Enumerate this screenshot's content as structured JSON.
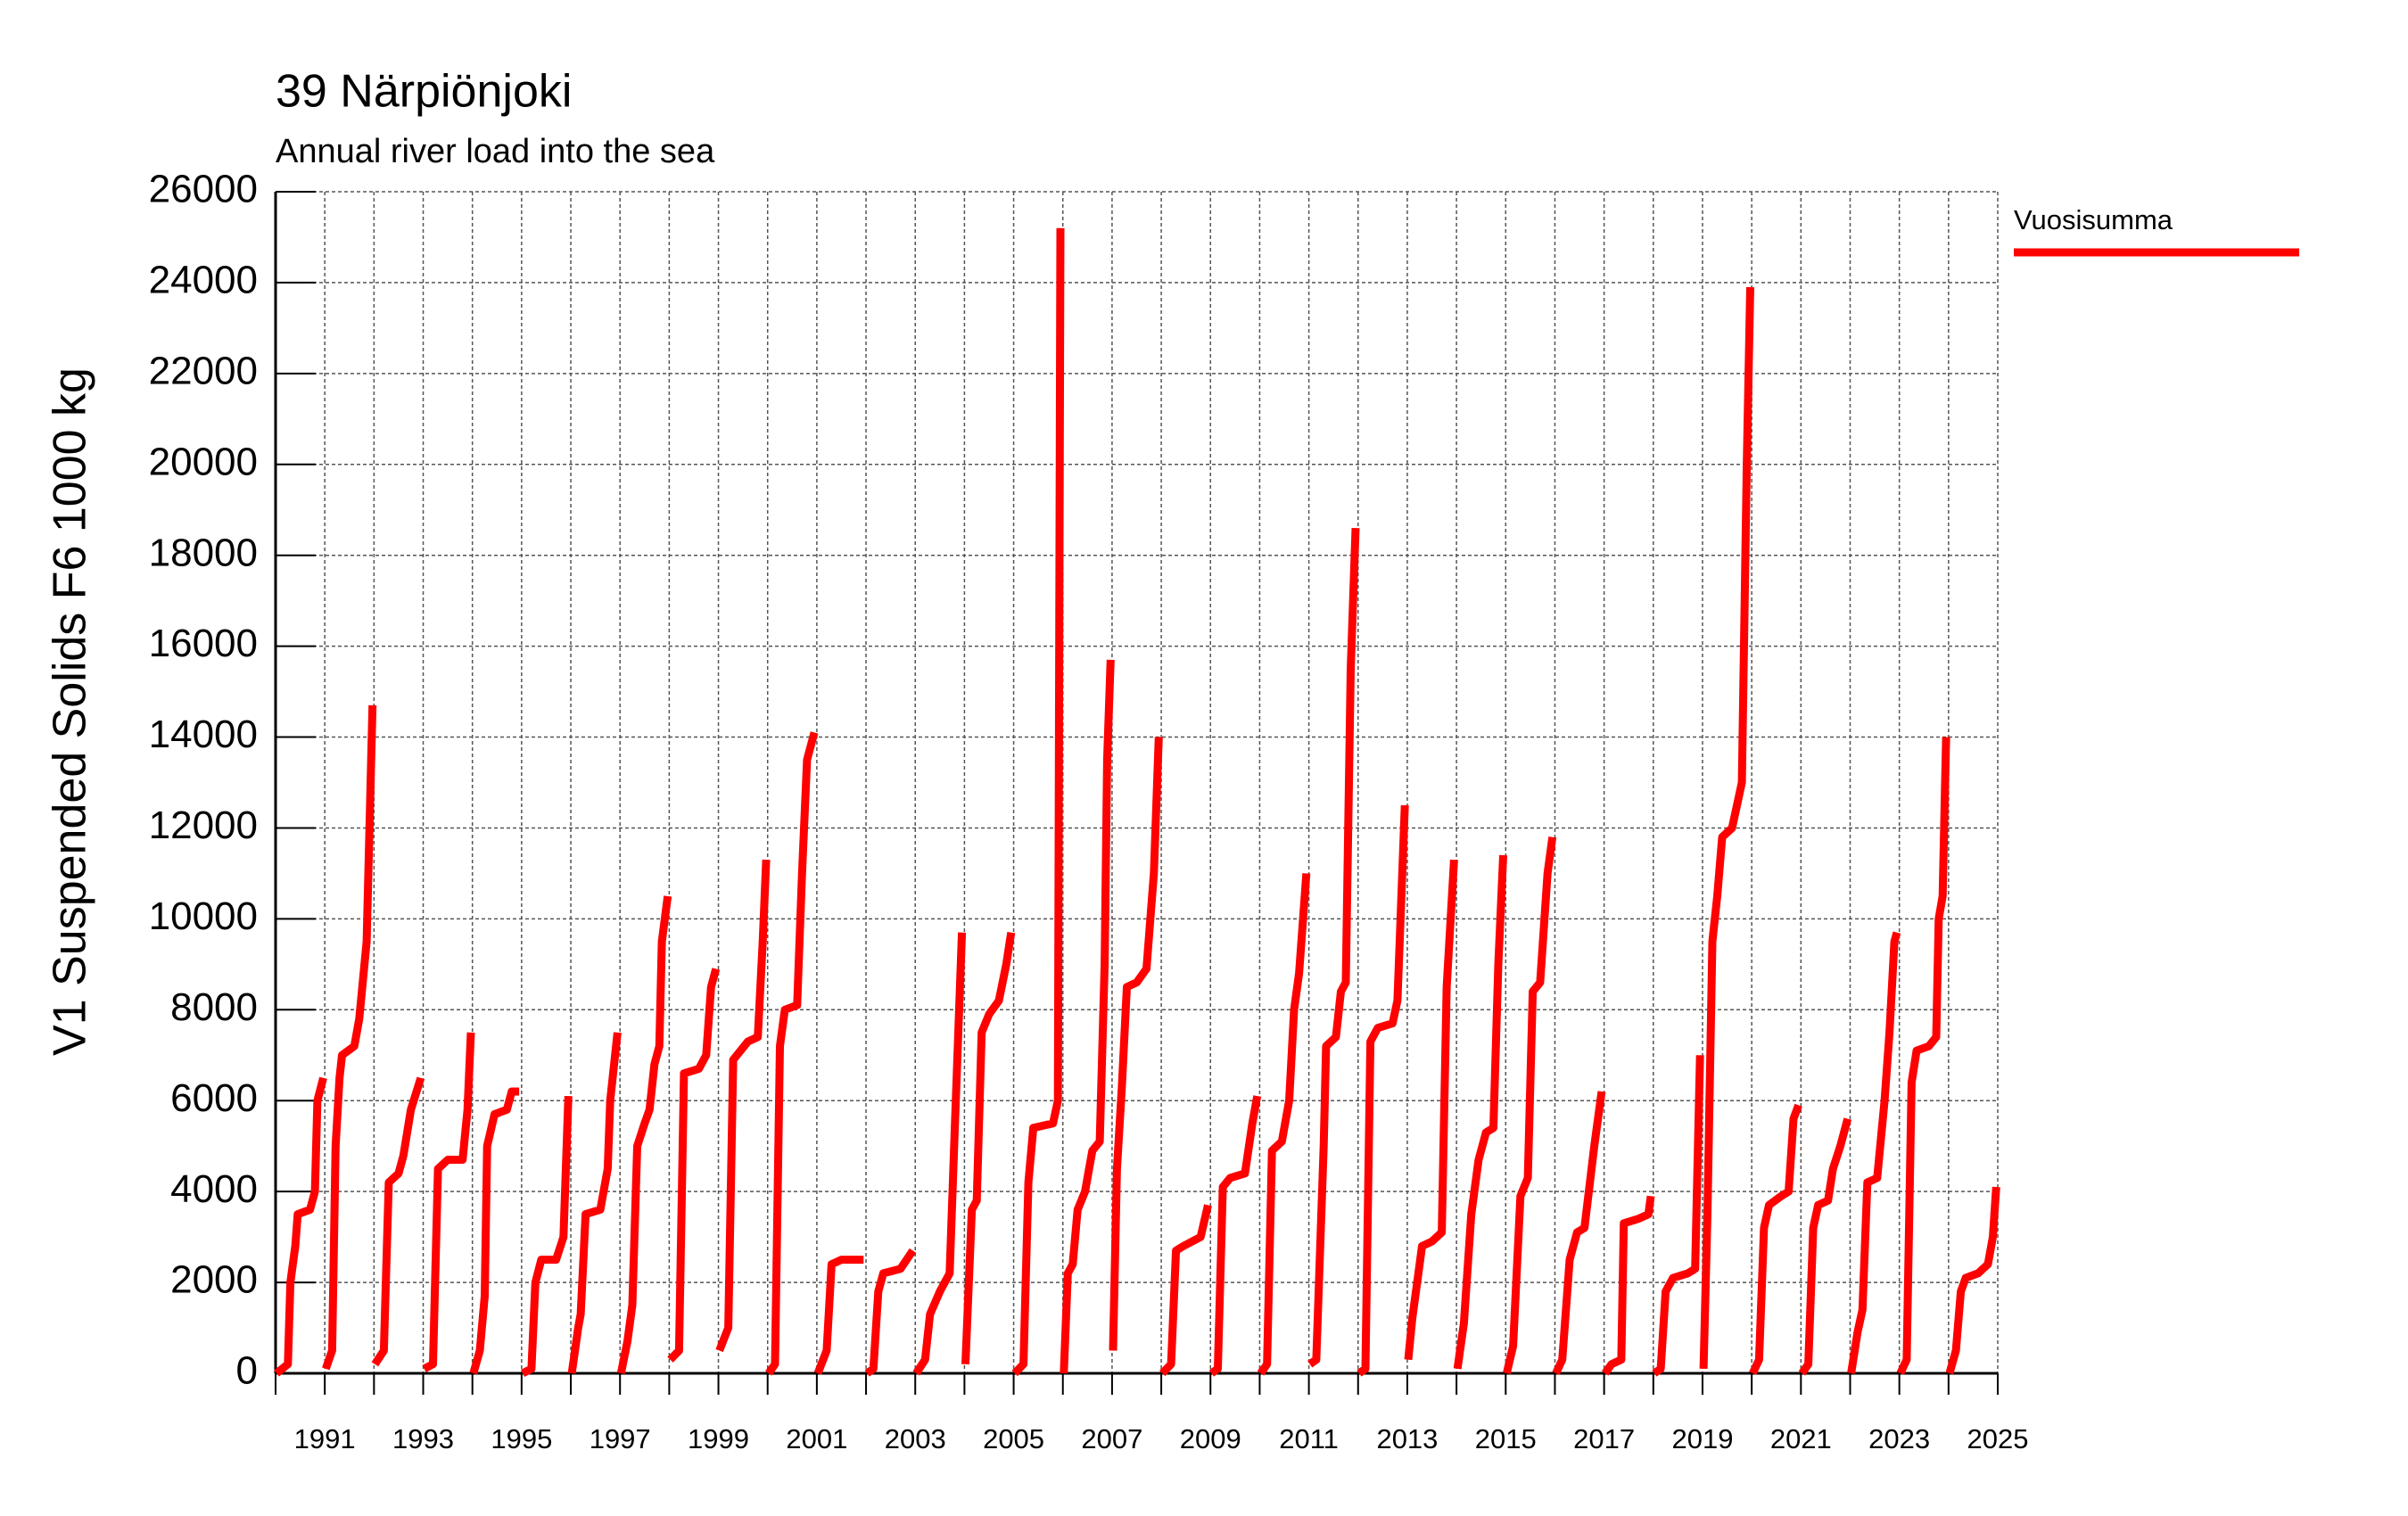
{
  "chart_data": {
    "type": "line",
    "title": "39 Närpiönjoki",
    "subtitle": "Annual river load into the sea",
    "y_label": "V1 Suspended Solids F6 1000 kg",
    "xlim": [
      1990,
      2025
    ],
    "xticks": [
      1991,
      1993,
      1995,
      1997,
      1999,
      2001,
      2003,
      2005,
      2007,
      2009,
      2011,
      2013,
      2015,
      2017,
      2019,
      2021,
      2023,
      2025
    ],
    "xminor_ticks": [
      1990,
      1992,
      1994,
      1996,
      1998,
      2000,
      2002,
      2004,
      2006,
      2008,
      2010,
      2012,
      2014,
      2016,
      2018,
      2020,
      2022,
      2024
    ],
    "ylim": [
      0,
      26000
    ],
    "yticks": [
      0,
      2000,
      4000,
      6000,
      8000,
      10000,
      12000,
      14000,
      16000,
      18000,
      20000,
      22000,
      24000,
      26000
    ],
    "grid": true,
    "legend": "right",
    "x": [
      1990.02,
      1990.25,
      1990.3,
      1990.4,
      1990.45,
      1990.7,
      1990.8,
      1990.85,
      1990.97,
      null,
      1991.02,
      1991.15,
      1991.22,
      1991.3,
      1991.35,
      1991.6,
      1991.7,
      1991.85,
      1991.97,
      null,
      1992.02,
      1992.2,
      1992.3,
      1992.5,
      1992.6,
      1992.75,
      1992.95,
      null,
      1993.02,
      1993.2,
      1993.3,
      1993.5,
      1993.8,
      1993.9,
      1993.97,
      null,
      1994.02,
      1994.15,
      1994.25,
      1994.3,
      1994.45,
      1994.7,
      1994.8,
      1994.95,
      null,
      1995.02,
      1995.2,
      1995.28,
      1995.4,
      1995.7,
      1995.85,
      1995.95,
      null,
      1996.02,
      1996.15,
      1996.2,
      1996.3,
      1996.6,
      1996.75,
      1996.8,
      1996.95,
      null,
      1997.02,
      1997.15,
      1997.25,
      1997.35,
      1997.5,
      1997.6,
      1997.7,
      1997.8,
      1997.85,
      1997.97,
      null,
      1998.02,
      1998.2,
      1998.3,
      1998.6,
      1998.75,
      1998.85,
      1998.95,
      null,
      1999.02,
      1999.2,
      1999.3,
      1999.6,
      1999.8,
      1999.9,
      1999.97,
      null,
      2000.02,
      2000.15,
      2000.25,
      2000.35,
      2000.6,
      2000.7,
      2000.8,
      2000.95,
      null,
      2001.02,
      2001.2,
      2001.3,
      2001.5,
      2001.95,
      null,
      2002.02,
      2002.15,
      2002.25,
      2002.35,
      2002.7,
      2002.95,
      null,
      2003.02,
      2003.2,
      2003.3,
      2003.5,
      2003.7,
      2003.8,
      2003.95,
      null,
      2004.02,
      2004.15,
      2004.25,
      2004.35,
      2004.5,
      2004.7,
      2004.85,
      2004.95,
      null,
      2005.02,
      2005.2,
      2005.3,
      2005.4,
      2005.8,
      2005.9,
      2005.95,
      null,
      2006.02,
      2006.1,
      2006.2,
      2006.3,
      2006.45,
      2006.6,
      2006.75,
      2006.85,
      2006.9,
      2006.97,
      null,
      2007.02,
      2007.1,
      2007.2,
      2007.3,
      2007.5,
      2007.7,
      2007.85,
      2007.95,
      null,
      2008.02,
      2008.2,
      2008.3,
      2008.45,
      2008.8,
      2008.95,
      null,
      2009.02,
      2009.15,
      2009.25,
      2009.4,
      2009.7,
      2009.85,
      2009.95,
      null,
      2010.02,
      2010.15,
      2010.25,
      2010.45,
      2010.6,
      2010.7,
      2010.8,
      2010.95,
      null,
      2011.02,
      2011.15,
      2011.3,
      2011.35,
      2011.55,
      2011.65,
      2011.75,
      2011.85,
      2011.95,
      null,
      2012.02,
      2012.15,
      2012.25,
      2012.4,
      2012.7,
      2012.8,
      2012.95,
      null,
      2013.02,
      2013.1,
      2013.2,
      2013.3,
      2013.5,
      2013.7,
      2013.8,
      2013.95,
      null,
      2014.02,
      2014.15,
      2014.3,
      2014.45,
      2014.6,
      2014.75,
      2014.85,
      2014.95,
      null,
      2015.02,
      2015.15,
      2015.3,
      2015.45,
      2015.55,
      2015.7,
      2015.85,
      2015.95,
      null,
      2016.02,
      2016.15,
      2016.3,
      2016.45,
      2016.6,
      2016.8,
      2016.95,
      null,
      2017.02,
      2017.15,
      2017.35,
      2017.4,
      2017.7,
      2017.9,
      2017.95,
      null,
      2018.02,
      2018.15,
      2018.25,
      2018.4,
      2018.7,
      2018.85,
      2018.95,
      null,
      2019.02,
      2019.1,
      2019.2,
      2019.3,
      2019.4,
      2019.6,
      2019.8,
      2019.9,
      2019.97,
      null,
      2020.02,
      2020.15,
      2020.25,
      2020.35,
      2020.6,
      2020.75,
      2020.85,
      2020.95,
      null,
      2021.02,
      2021.15,
      2021.25,
      2021.35,
      2021.55,
      2021.65,
      2021.8,
      2021.95,
      null,
      2022.02,
      2022.15,
      2022.25,
      2022.35,
      2022.55,
      2022.7,
      2022.8,
      2022.9,
      2022.95,
      null,
      2023.02,
      2023.15,
      2023.25,
      2023.35,
      2023.6,
      2023.75,
      2023.8,
      2023.88,
      2023.95,
      null,
      2024.02,
      2024.15,
      2024.25,
      2024.35,
      2024.6,
      2024.8,
      2024.9,
      2024.97
    ],
    "series": [
      {
        "name": "Vuosisumma",
        "color": "#ff0000",
        "values": [
          0,
          200,
          2000,
          2800,
          3500,
          3600,
          4000,
          6000,
          6500,
          null,
          100,
          500,
          5000,
          6500,
          7000,
          7200,
          7800,
          9500,
          14700,
          null,
          200,
          500,
          4200,
          4400,
          4800,
          5800,
          6500,
          null,
          100,
          200,
          4500,
          4700,
          4700,
          5800,
          7500,
          null,
          0,
          500,
          1700,
          5000,
          5700,
          5800,
          6200,
          6200,
          null,
          0,
          100,
          2000,
          2500,
          2500,
          3000,
          6100,
          null,
          0,
          1000,
          1300,
          3500,
          3600,
          4500,
          6000,
          7500,
          null,
          0,
          700,
          1500,
          5000,
          5500,
          5800,
          6800,
          7200,
          9500,
          10500,
          null,
          300,
          500,
          6600,
          6700,
          7000,
          8500,
          8900,
          null,
          500,
          1000,
          6900,
          7300,
          7400,
          9500,
          11300,
          null,
          0,
          200,
          7200,
          8000,
          8100,
          11000,
          13500,
          14100,
          null,
          0,
          500,
          2400,
          2500,
          2500,
          null,
          0,
          100,
          1800,
          2200,
          2300,
          2700,
          null,
          0,
          300,
          1300,
          1800,
          2200,
          5300,
          9700,
          null,
          200,
          3600,
          3800,
          7500,
          7900,
          8200,
          9000,
          9700,
          null,
          0,
          200,
          4200,
          5400,
          5500,
          6000,
          25200,
          null,
          0,
          2200,
          2400,
          3600,
          4000,
          4900,
          5100,
          9000,
          13500,
          15700,
          null,
          500,
          4500,
          6300,
          8500,
          8600,
          8900,
          11000,
          14000,
          null,
          0,
          200,
          2700,
          2800,
          3000,
          3700,
          null,
          0,
          100,
          4100,
          4300,
          4400,
          5500,
          6100,
          null,
          0,
          200,
          4900,
          5100,
          6000,
          8000,
          8800,
          11000,
          null,
          200,
          300,
          5000,
          7200,
          7400,
          8400,
          8600,
          15500,
          18600,
          null,
          0,
          100,
          7300,
          7600,
          7700,
          8200,
          12500,
          null,
          300,
          1200,
          2000,
          2800,
          2900,
          3100,
          8500,
          11300,
          null,
          100,
          1100,
          3500,
          4700,
          5300,
          5400,
          9000,
          11400,
          null,
          0,
          600,
          3900,
          4300,
          8400,
          8600,
          11000,
          11800,
          null,
          0,
          300,
          2500,
          3100,
          3200,
          5000,
          6200,
          null,
          0,
          200,
          300,
          3300,
          3400,
          3500,
          3900,
          null,
          0,
          100,
          1800,
          2100,
          2200,
          2300,
          7000,
          null,
          100,
          3500,
          9500,
          10500,
          11800,
          12000,
          13000,
          20000,
          23900,
          null,
          0,
          300,
          3200,
          3700,
          3900,
          4000,
          5600,
          5900,
          null,
          0,
          200,
          3200,
          3700,
          3800,
          4500,
          5000,
          5600,
          null,
          0,
          900,
          1400,
          4200,
          4300,
          6000,
          7500,
          9500,
          9700,
          null,
          0,
          300,
          6400,
          7100,
          7200,
          7400,
          10000,
          10500,
          14000,
          null,
          0,
          500,
          1800,
          2100,
          2200,
          2400,
          3000,
          4100
        ]
      }
    ]
  }
}
